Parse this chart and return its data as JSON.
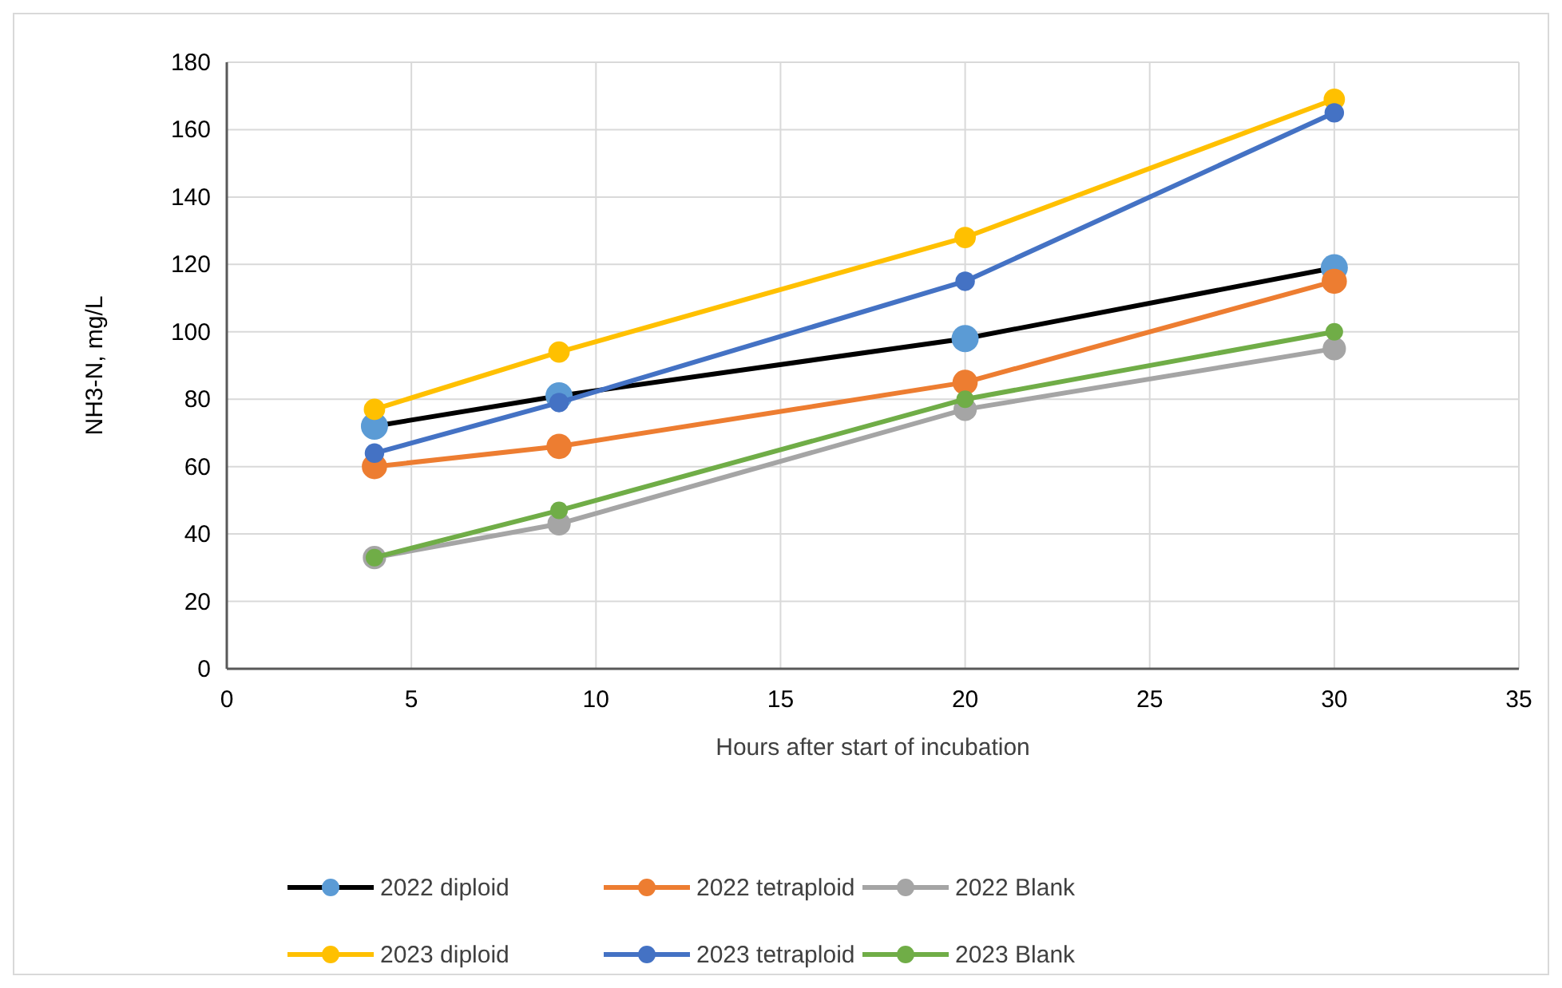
{
  "chart_data": {
    "type": "line",
    "xlabel": "Hours after start of incubation",
    "ylabel": "NH3-N, mg/L",
    "x": [
      4,
      9,
      20,
      30
    ],
    "series": [
      {
        "name": "2022 diploid",
        "color": "#000000",
        "colors": [
          "#5b9bd5",
          "#5b9bd5",
          "#5b9bd5",
          "#5b9bd5"
        ],
        "values": [
          72,
          81,
          98,
          119
        ]
      },
      {
        "name": "2022 tetraploid",
        "color": "#ed7d31",
        "values": [
          60,
          66,
          85,
          115
        ]
      },
      {
        "name": "2022 Blank",
        "color": "#a5a5a5",
        "values": [
          33,
          43,
          77,
          95
        ]
      },
      {
        "name": "2023 diploid",
        "color": "#ffc000",
        "values": [
          77,
          94,
          128,
          169
        ]
      },
      {
        "name": "2023 tetraploid",
        "color": "#4472c4",
        "values": [
          64,
          79,
          115,
          165
        ]
      },
      {
        "name": "2023 Blank",
        "color": "#70ad47",
        "values": [
          33,
          47,
          80,
          100
        ]
      }
    ],
    "xlim": [
      0,
      35
    ],
    "xticks": [
      0,
      5,
      10,
      15,
      20,
      25,
      30,
      35
    ],
    "ylim": [
      0,
      180
    ],
    "yticks": [
      0,
      20,
      40,
      60,
      80,
      100,
      120,
      140,
      160,
      180
    ],
    "grid": true,
    "legend": "bottom",
    "marker": "circle",
    "line_style": "solid"
  }
}
